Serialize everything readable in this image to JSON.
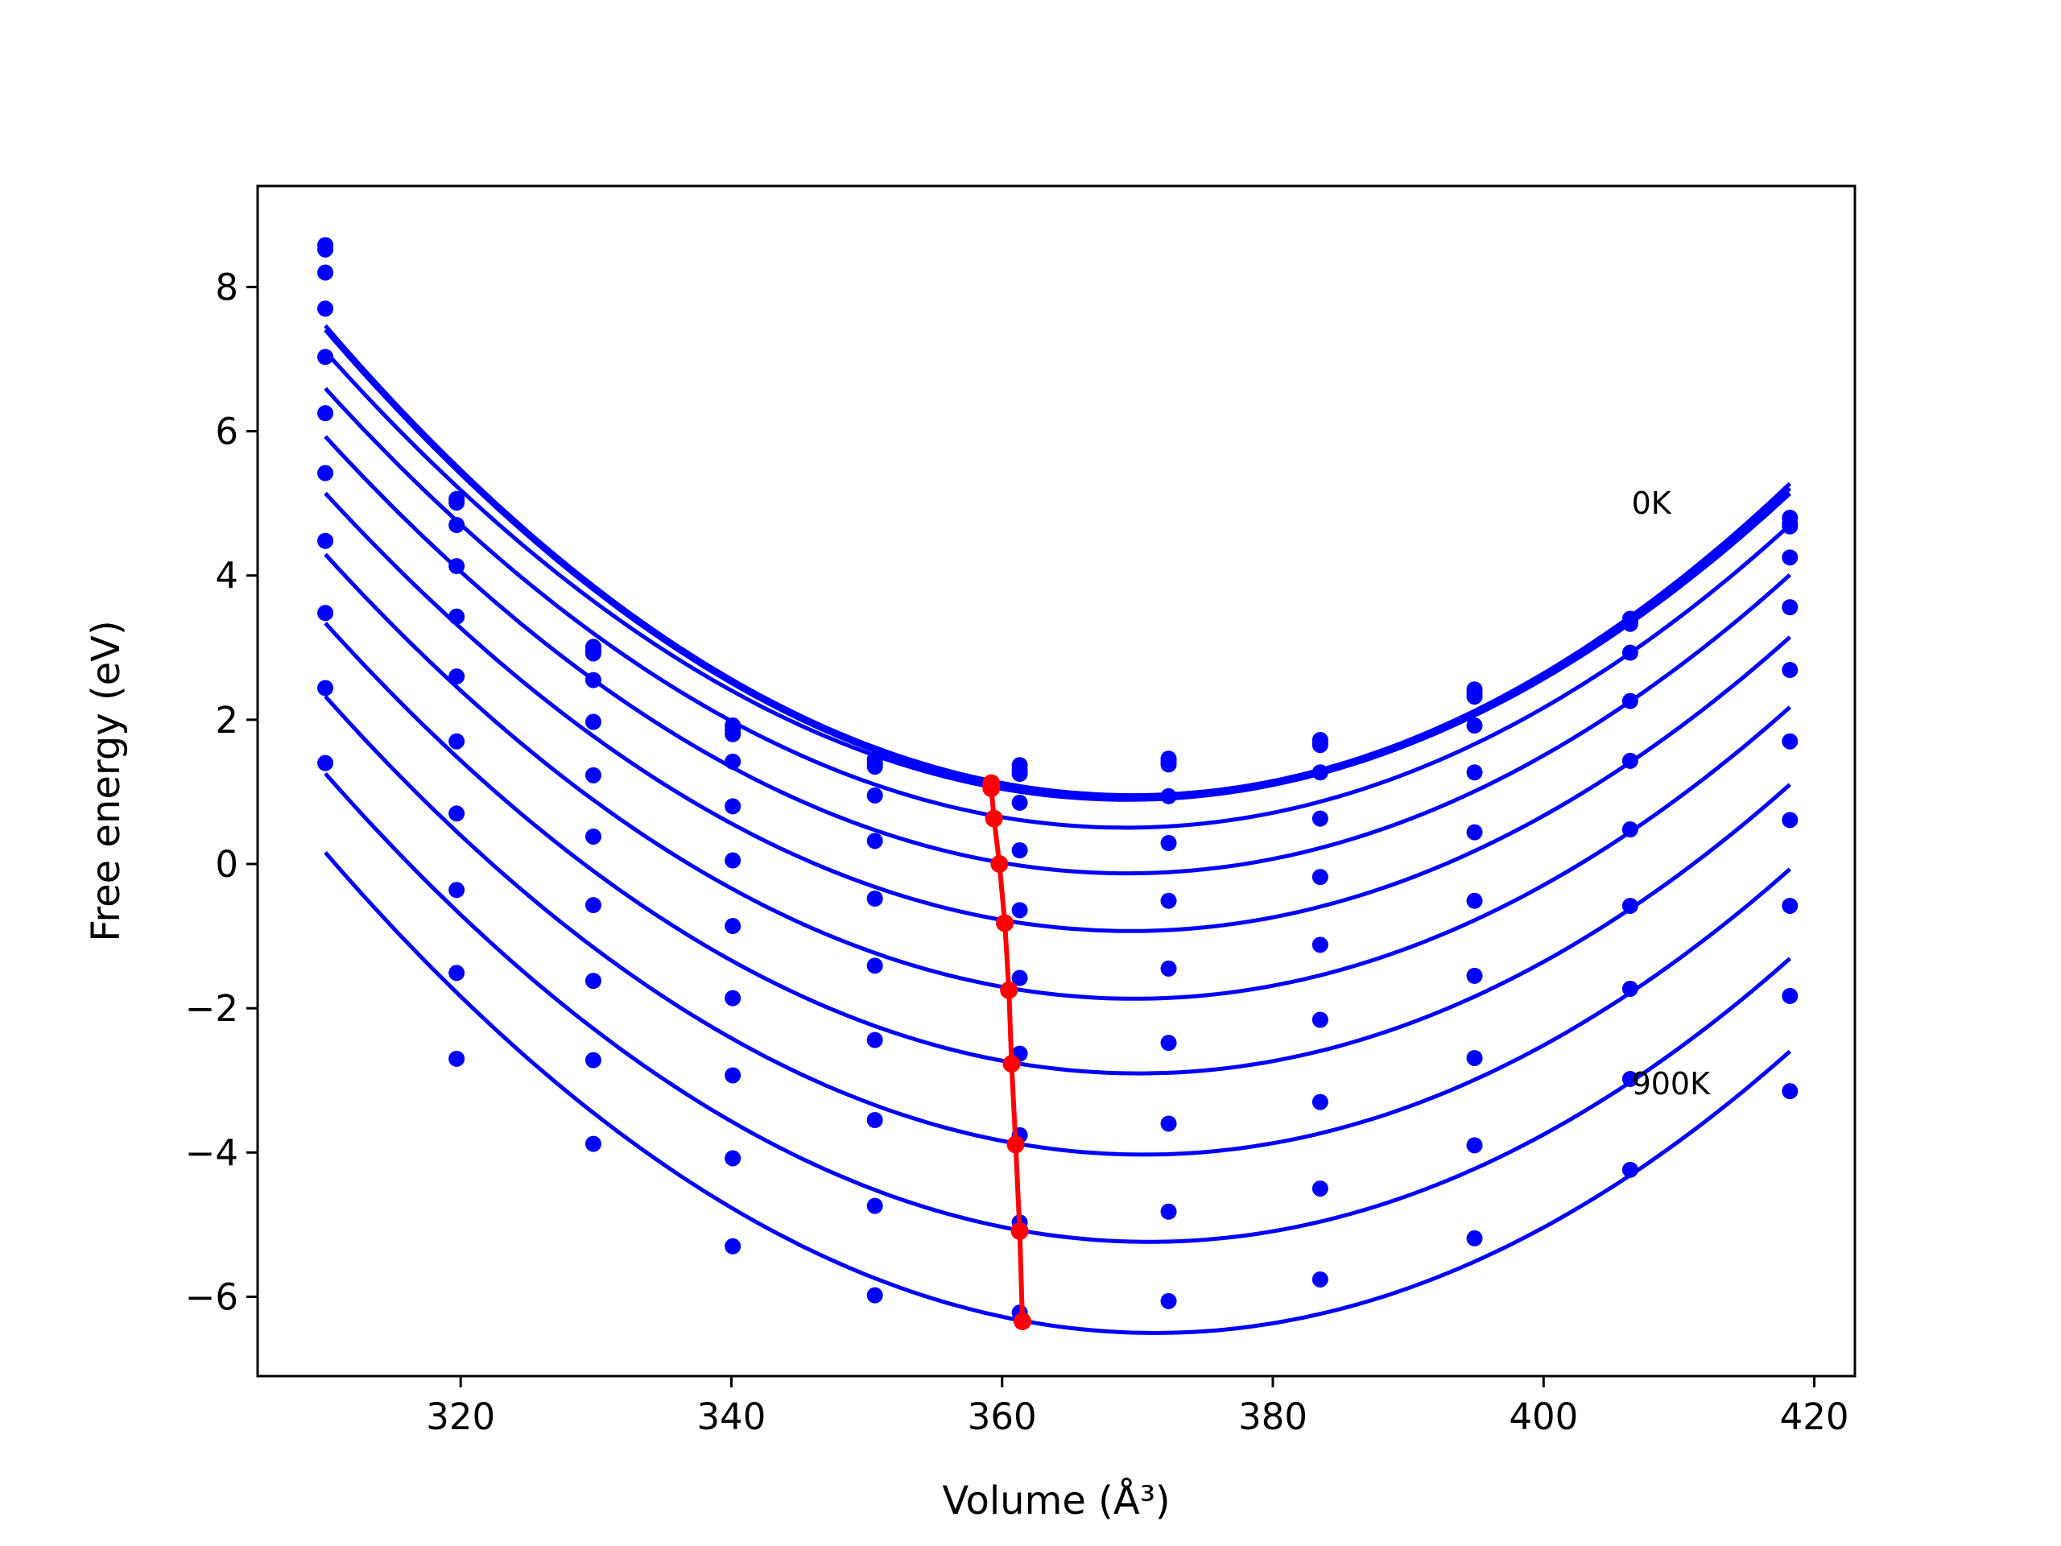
{
  "chart_data": {
    "type": "line",
    "xlabel": "Volume (Å³)",
    "ylabel": "Free energy (eV)",
    "xlim": [
      305,
      423
    ],
    "ylim": [
      -7.1,
      9.4
    ],
    "xticks": [
      320,
      340,
      360,
      380,
      400,
      420
    ],
    "yticks": [
      -6,
      -4,
      -2,
      0,
      2,
      4,
      6,
      8
    ],
    "ytick_labels": [
      "−6",
      "−4",
      "−2",
      "0",
      "2",
      "4",
      "6",
      "8"
    ],
    "grid": false,
    "legend": "none",
    "colors": {
      "curves": "#0000ff",
      "minimum_path": "#ff0000",
      "frame": "#000000"
    },
    "volumes": [
      310.0,
      319.7,
      329.8,
      340.1,
      350.6,
      361.3,
      372.3,
      383.5,
      394.9,
      406.4,
      418.2
    ],
    "series": [
      {
        "values": [
          8.58,
          5.06,
          3.01,
          1.92,
          1.45,
          1.37,
          1.46,
          1.72,
          2.42,
          3.4,
          4.8
        ]
      },
      {
        "values": [
          8.52,
          5.01,
          2.96,
          1.86,
          1.39,
          1.3,
          1.42,
          1.68,
          2.37,
          3.35,
          4.72
        ]
      },
      {
        "values": [
          8.2,
          4.7,
          2.92,
          1.8,
          1.35,
          1.25,
          1.38,
          1.65,
          2.32,
          3.33,
          4.68
        ]
      },
      {
        "values": [
          7.7,
          4.13,
          2.55,
          1.42,
          0.95,
          0.85,
          0.94,
          1.27,
          1.92,
          2.93,
          4.25
        ]
      },
      {
        "values": [
          7.03,
          3.43,
          1.97,
          0.8,
          0.32,
          0.19,
          0.29,
          0.63,
          1.27,
          2.26,
          3.56
        ]
      },
      {
        "values": [
          6.25,
          2.6,
          1.23,
          0.05,
          -0.48,
          -0.64,
          -0.51,
          -0.18,
          0.44,
          1.43,
          2.69
        ]
      },
      {
        "values": [
          5.42,
          1.7,
          0.38,
          -0.86,
          -1.41,
          -1.58,
          -1.45,
          -1.12,
          -0.51,
          0.48,
          1.7
        ]
      },
      {
        "values": [
          4.48,
          0.7,
          -0.57,
          -1.86,
          -2.44,
          -2.63,
          -2.48,
          -2.16,
          -1.55,
          -0.58,
          0.61
        ]
      },
      {
        "values": [
          3.48,
          -0.36,
          -1.62,
          -2.93,
          -3.55,
          -3.76,
          -3.6,
          -3.3,
          -2.69,
          -1.73,
          -0.58
        ]
      },
      {
        "values": [
          2.44,
          -1.51,
          -2.72,
          -4.08,
          -4.74,
          -4.97,
          -4.82,
          -4.5,
          -3.9,
          -2.98,
          -1.83
        ]
      },
      {
        "values": [
          1.4,
          -2.7,
          -3.88,
          -5.3,
          -5.98,
          -6.22,
          -6.06,
          -5.76,
          -5.19,
          -4.24,
          -3.15
        ]
      }
    ],
    "minimum_path": {
      "volume": [
        359.2,
        359.2,
        359.2,
        359.4,
        359.8,
        360.2,
        360.5,
        360.7,
        361.0,
        361.3
      ],
      "energy": [
        1.12,
        1.07,
        1.05,
        0.63,
        0.0,
        -0.82,
        -1.75,
        -2.77,
        -3.89,
        -5.09
      ],
      "extra": [
        [
          361.5,
          -6.34
        ]
      ]
    },
    "annotations": [
      {
        "text": "0K",
        "x": 406.5,
        "y": 5.0
      },
      {
        "text": "900K",
        "x": 406.5,
        "y": -3.05
      }
    ]
  }
}
